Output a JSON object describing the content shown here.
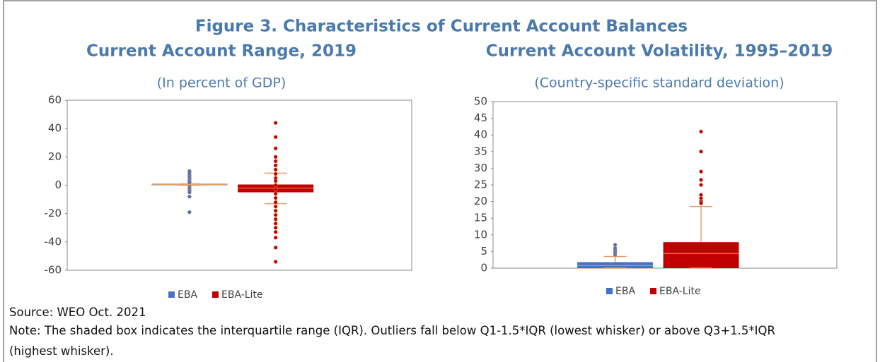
{
  "figure_title": "Figure 3. Characteristics of Current Account Balances",
  "source": "Source: WEO Oct. 2021",
  "note": "Note: The shaded box indicates the interquartile range (IQR). Outliers fall below Q1-1.5*IQR (lowest whisker) or above Q3+1.5*IQR (highest whisker).",
  "chart_data": [
    {
      "type": "box",
      "title": "Current Account Range, 2019",
      "subtitle": "(In percent of GDP)",
      "ylim": [
        -60,
        60
      ],
      "yticks": [
        -60,
        -40,
        -20,
        0,
        20,
        40,
        60
      ],
      "legend": "bottom",
      "series": [
        {
          "name": "EBA",
          "color": "#4472c4",
          "whisker_low": 0,
          "q1": 0,
          "median": 0.5,
          "q3": 1,
          "whisker_high": 1,
          "outliers": [
            10,
            8.5,
            7,
            5.5,
            4,
            3,
            2,
            -1,
            -2,
            -3,
            -4,
            -5,
            -8,
            -19
          ]
        },
        {
          "name": "EBA-Lite",
          "color": "#c00000",
          "whisker_low": -13,
          "q1": -5,
          "median": -2,
          "q3": 0.5,
          "whisker_high": 8.5,
          "outliers": [
            44,
            34,
            26,
            20,
            17,
            14,
            11,
            8,
            5,
            3,
            0,
            -3,
            -6,
            -9,
            -12,
            -15,
            -18,
            -21,
            -24,
            -27,
            -30,
            -33,
            -37,
            -44,
            -54
          ]
        }
      ]
    },
    {
      "type": "box",
      "title": "Current Account Volatility, 1995–2019",
      "subtitle": "(Country-specific standard deviation)",
      "ylim": [
        0,
        50
      ],
      "yticks": [
        0,
        5,
        10,
        15,
        20,
        25,
        30,
        35,
        40,
        45,
        50
      ],
      "legend": "bottom",
      "series": [
        {
          "name": "EBA",
          "color": "#4472c4",
          "whisker_low": 0,
          "q1": 0,
          "median": 0.8,
          "q3": 1.8,
          "whisker_high": 3.5,
          "outliers": [
            4,
            4.5,
            5,
            5.5,
            6,
            7
          ]
        },
        {
          "name": "EBA-Lite",
          "color": "#c00000",
          "whisker_low": 0,
          "q1": 0,
          "median": 4.4,
          "q3": 7.8,
          "whisker_high": 18.5,
          "outliers": [
            41,
            35,
            29,
            26.5,
            25,
            22,
            21,
            20,
            19.5
          ]
        }
      ]
    }
  ]
}
